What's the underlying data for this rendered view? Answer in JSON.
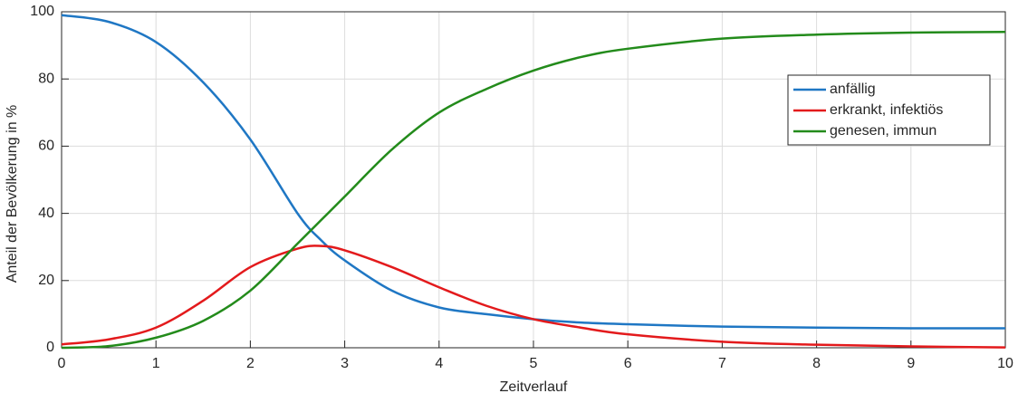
{
  "chart_data": {
    "type": "line",
    "x_label": "Zeitverlauf",
    "y_label": "Anteil der Bevölkerung in %",
    "x": [
      0,
      0.5,
      1,
      1.5,
      2,
      2.5,
      2.75,
      3,
      3.5,
      4,
      4.5,
      5,
      5.5,
      6,
      7,
      8,
      9,
      10
    ],
    "series": [
      {
        "name": "anfällig",
        "color": "#1f77c4",
        "values": [
          99,
          97,
          91,
          79,
          62,
          40,
          32,
          26,
          17,
          12,
          10,
          8.5,
          7.5,
          7,
          6.3,
          6,
          5.8,
          5.8
        ]
      },
      {
        "name": "erkrankt, infektiös",
        "color": "#e31a1c",
        "values": [
          1,
          2.5,
          6,
          14,
          24,
          29.5,
          30.3,
          29,
          24,
          18,
          12.5,
          8.5,
          6,
          4,
          1.8,
          0.9,
          0.4,
          0.1
        ]
      },
      {
        "name": "genesen, immun",
        "color": "#238b1b",
        "values": [
          0,
          0.5,
          3,
          8,
          17,
          31,
          38,
          45,
          59,
          70,
          77,
          82.5,
          86.5,
          89,
          92,
          93.2,
          93.8,
          94
        ]
      }
    ],
    "xlim": [
      0,
      10
    ],
    "xticks": [
      0,
      1,
      2,
      3,
      4,
      5,
      6,
      7,
      8,
      9,
      10
    ],
    "ylim": [
      0,
      100
    ],
    "yticks": [
      0,
      20,
      40,
      60,
      80,
      100
    ],
    "grid": true,
    "legend": "upper right"
  }
}
